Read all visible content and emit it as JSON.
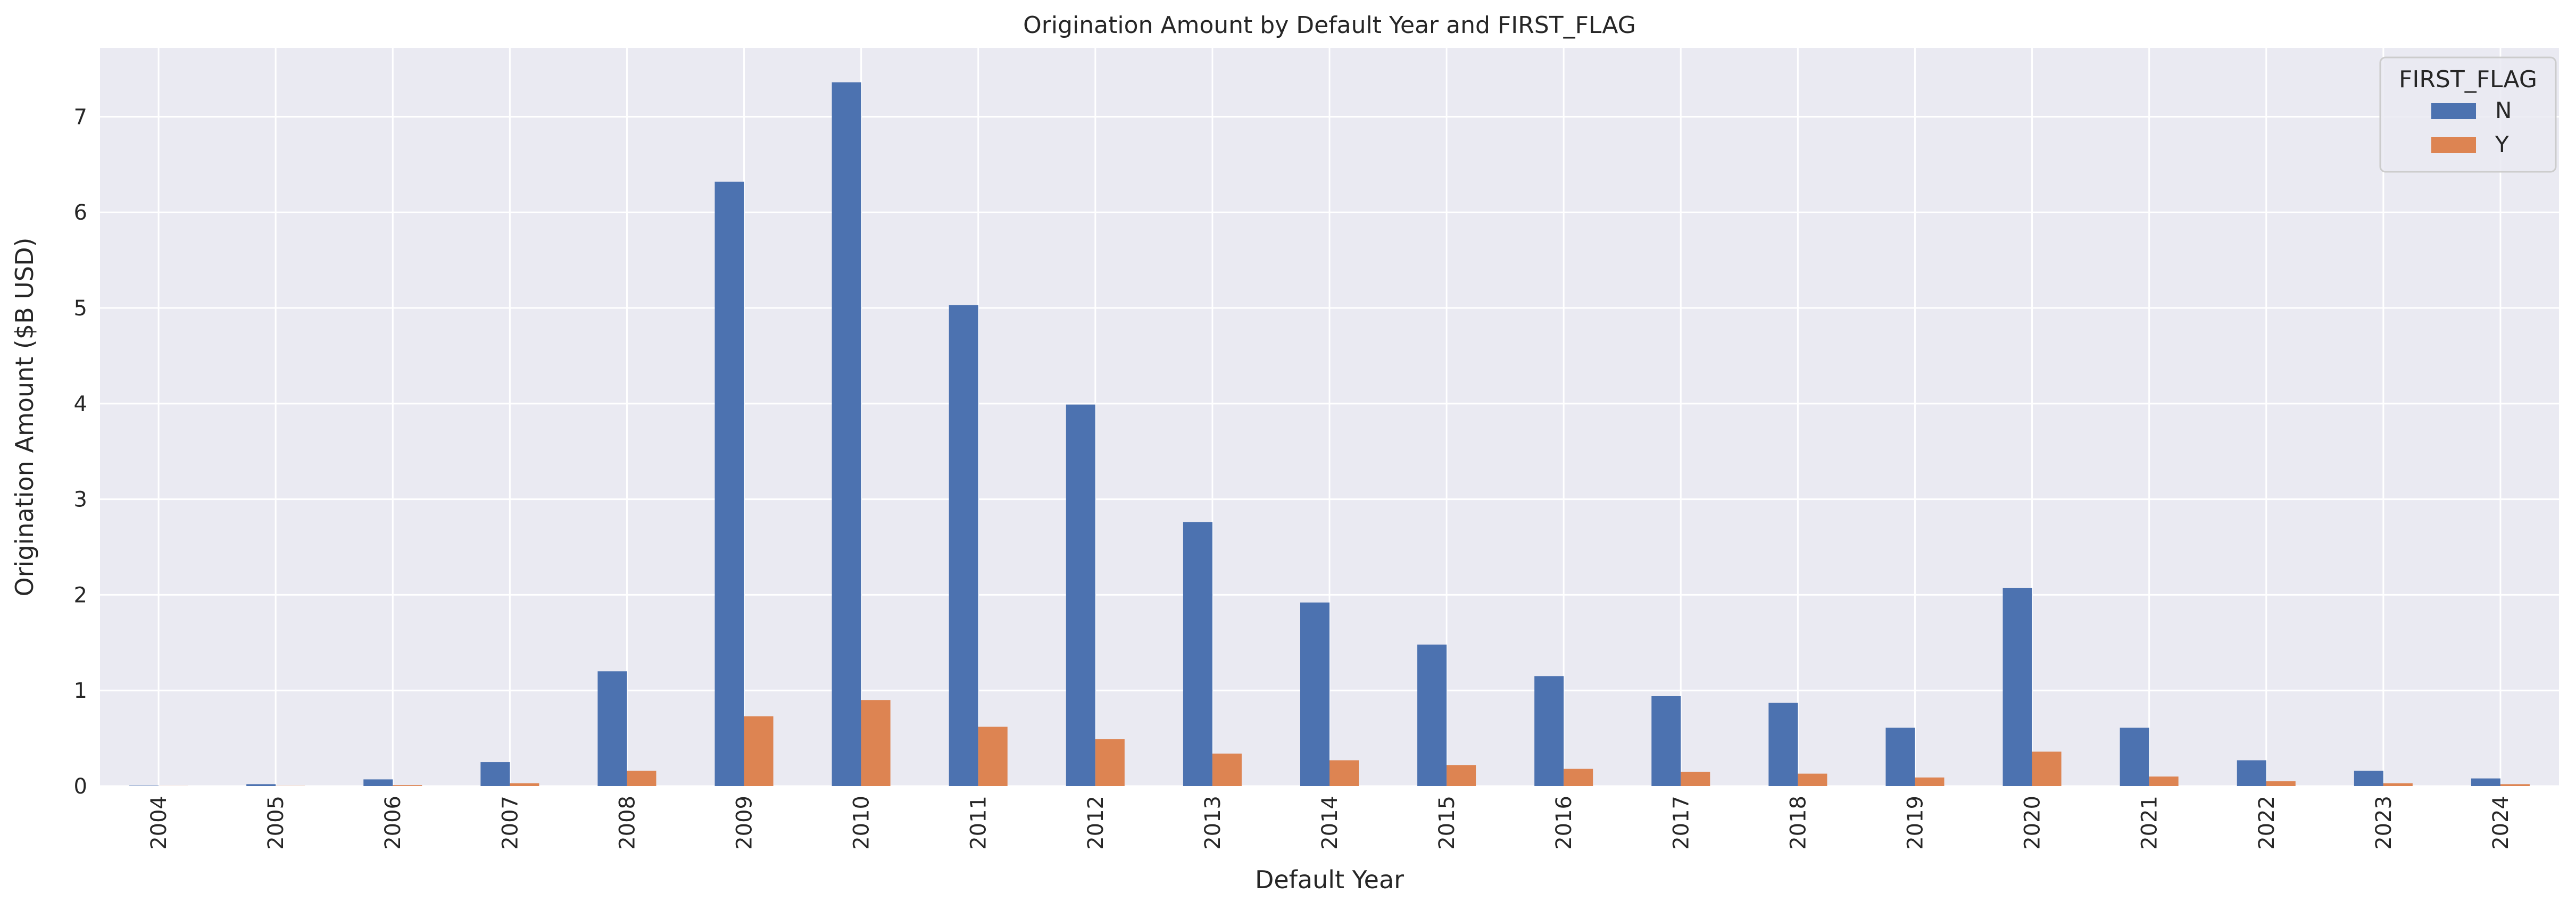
{
  "chart_data": {
    "type": "bar",
    "title": "Origination Amount by Default Year and FIRST_FLAG",
    "xlabel": "Default Year",
    "ylabel": "Origination Amount ($B USD)",
    "categories": [
      "2004",
      "2005",
      "2006",
      "2007",
      "2008",
      "2009",
      "2010",
      "2011",
      "2012",
      "2013",
      "2014",
      "2015",
      "2016",
      "2017",
      "2018",
      "2019",
      "2020",
      "2021",
      "2022",
      "2023",
      "2024"
    ],
    "series": [
      {
        "name": "N",
        "color": "#4c72b0",
        "values": [
          0.005,
          0.02,
          0.07,
          0.25,
          1.2,
          6.32,
          7.36,
          5.03,
          3.99,
          2.76,
          1.92,
          1.48,
          1.15,
          0.94,
          0.87,
          0.61,
          2.07,
          0.61,
          0.27,
          0.16,
          0.08
        ]
      },
      {
        "name": "Y",
        "color": "#dd8452",
        "values": [
          0.001,
          0.002,
          0.01,
          0.03,
          0.16,
          0.73,
          0.9,
          0.62,
          0.49,
          0.34,
          0.27,
          0.22,
          0.18,
          0.15,
          0.13,
          0.09,
          0.36,
          0.1,
          0.05,
          0.03,
          0.02
        ]
      }
    ],
    "ylim": [
      0,
      7.72
    ],
    "yticks": [
      "0",
      "1",
      "2",
      "3",
      "4",
      "5",
      "6",
      "7"
    ],
    "grid": true,
    "background": "#eaeaf2",
    "legend": {
      "title": "FIRST_FLAG",
      "placement": "top-right"
    }
  }
}
